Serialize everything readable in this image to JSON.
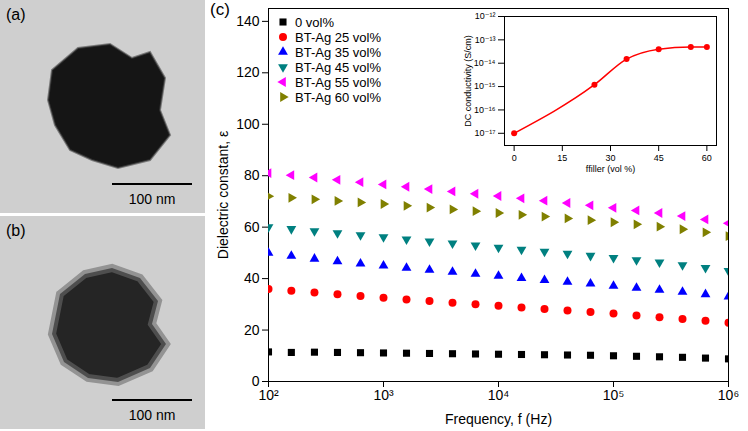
{
  "images": [
    {
      "label": "(a)",
      "scale_bar": "100 nm"
    },
    {
      "label": "(b)",
      "scale_bar": "100 nm"
    }
  ],
  "chart_data": [
    {
      "type": "scatter",
      "annotations": [
        "(c)"
      ],
      "x_label": "Frequency, f (Hz)",
      "y_label": "Dielectric constant, ε",
      "log": "x",
      "grid": false,
      "legend": "upper left",
      "xlim": [
        100,
        1000000
      ],
      "xticks": [
        {
          "value": 100,
          "label": "10²"
        },
        {
          "value": 1000,
          "label": "10³"
        },
        {
          "value": 10000,
          "label": "10⁴"
        },
        {
          "value": 100000,
          "label": "10⁵"
        },
        {
          "value": 1000000,
          "label": "10⁶"
        }
      ],
      "ylim": [
        0,
        145
      ],
      "yticks": [
        0,
        20,
        40,
        60,
        80,
        100,
        120,
        140
      ],
      "x": [
        100,
        158,
        251,
        398,
        631,
        1000,
        1585,
        2512,
        3981,
        6310,
        10000,
        15849,
        25119,
        39811,
        63096,
        100000,
        158489,
        251189,
        398107,
        630957,
        1000000
      ],
      "series": [
        {
          "name": "0 vol%",
          "color": "#000000",
          "marker": "square",
          "values": [
            11.5,
            11.3,
            11.4,
            11.3,
            11.2,
            11.1,
            11.0,
            10.9,
            10.8,
            10.7,
            10.6,
            10.5,
            10.4,
            10.3,
            10.2,
            10.0,
            9.8,
            9.6,
            9.4,
            9.1,
            8.8
          ]
        },
        {
          "name": "BT-Ag 25 vol%",
          "color": "#ff0000",
          "marker": "circle",
          "values": [
            36.0,
            35.3,
            34.6,
            33.9,
            33.2,
            32.6,
            31.9,
            31.3,
            30.6,
            30.0,
            29.4,
            28.8,
            28.2,
            27.6,
            27.0,
            26.4,
            25.7,
            25.0,
            24.3,
            23.6,
            22.8
          ]
        },
        {
          "name": "BT-Ag 35 vol%",
          "color": "#0000ff",
          "marker": "triangle-up",
          "values": [
            50.0,
            48.8,
            47.7,
            46.7,
            45.8,
            45.0,
            44.2,
            43.4,
            42.6,
            41.8,
            41.0,
            40.2,
            39.4,
            38.7,
            38.0,
            37.2,
            36.4,
            35.6,
            34.8,
            33.9,
            33.0
          ]
        },
        {
          "name": "BT-Ag 45 vol%",
          "color": "#008080",
          "marker": "triangle-down",
          "values": [
            60.0,
            59.3,
            58.5,
            57.7,
            56.9,
            56.1,
            55.3,
            54.5,
            53.7,
            52.9,
            52.1,
            51.3,
            50.5,
            49.7,
            48.9,
            48.1,
            47.2,
            46.3,
            45.3,
            44.2,
            43.0
          ]
        },
        {
          "name": "BT-Ag 55 vol%",
          "color": "#ff00ff",
          "marker": "triangle-left",
          "values": [
            81.0,
            80.2,
            79.3,
            78.4,
            77.5,
            76.6,
            75.7,
            74.8,
            73.9,
            73.0,
            72.1,
            71.2,
            70.3,
            69.4,
            68.5,
            67.5,
            66.5,
            65.5,
            64.3,
            63.0,
            61.5
          ]
        },
        {
          "name": "BT-Ag 60 vol%",
          "color": "#808000",
          "marker": "triangle-right",
          "values": [
            72.0,
            71.4,
            70.8,
            70.2,
            69.6,
            69.0,
            68.3,
            67.6,
            66.9,
            66.2,
            65.5,
            64.8,
            64.1,
            63.4,
            62.7,
            61.9,
            61.1,
            60.2,
            59.2,
            58.0,
            56.5
          ]
        }
      ]
    },
    {
      "type": "line",
      "x_label": "ffiller (vol %)",
      "y_label": "DC conductivity (S/cm)",
      "log": "y",
      "grid": false,
      "xlim": [
        -3,
        63
      ],
      "xticks": [
        0,
        15,
        30,
        45,
        60
      ],
      "ylim": [
        3e-18,
        1e-12
      ],
      "yticks": [
        {
          "value": 1e-17,
          "label": "10⁻¹⁷"
        },
        {
          "value": 1e-16,
          "label": "10⁻¹⁶"
        },
        {
          "value": 1e-15,
          "label": "10⁻¹⁵"
        },
        {
          "value": 1e-14,
          "label": "10⁻¹⁴"
        },
        {
          "value": 1e-13,
          "label": "10⁻¹³"
        },
        {
          "value": 1e-12,
          "label": "10⁻¹²"
        }
      ],
      "x": [
        0,
        25,
        35,
        45,
        55,
        60
      ],
      "series": [
        {
          "color": "#ff0000",
          "marker": "circle",
          "line_style": "solid",
          "values": [
            1e-17,
            1.2e-15,
            1.5e-14,
            4e-14,
            5e-14,
            5e-14
          ]
        }
      ]
    }
  ]
}
